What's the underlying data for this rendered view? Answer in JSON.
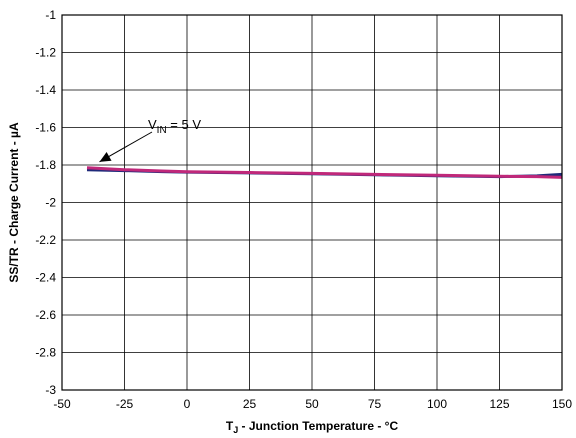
{
  "chart_data": {
    "type": "line",
    "title": "",
    "xlabel": {
      "main": "T",
      "sub": "J",
      "rest": " - Junction Temperature - °C"
    },
    "ylabel": "SS/TR - Charge Current - µA",
    "xlim": [
      -50,
      150
    ],
    "ylim": [
      -3,
      -1
    ],
    "x_ticks": [
      -50,
      -25,
      0,
      25,
      50,
      75,
      100,
      125,
      150
    ],
    "y_ticks": [
      -1,
      -1.2,
      -1.4,
      -1.6,
      -1.8,
      -2,
      -2.2,
      -2.4,
      -2.6,
      -2.8,
      -3
    ],
    "x_tick_labels": [
      "-50",
      "-25",
      "0",
      "25",
      "50",
      "75",
      "100",
      "125",
      "150"
    ],
    "y_tick_labels": [
      "-1",
      "-1.2",
      "-1.4",
      "-1.6",
      "-1.8",
      "-2",
      "-2.2",
      "-2.4",
      "-2.6",
      "-2.8",
      "-3"
    ],
    "grid": true,
    "series": [
      {
        "color": "#1f2a7a",
        "x": [
          -40,
          -25,
          -10,
          0,
          25,
          50,
          75,
          100,
          125,
          140,
          150
        ],
        "y": [
          -1.825,
          -1.83,
          -1.835,
          -1.838,
          -1.842,
          -1.847,
          -1.852,
          -1.857,
          -1.862,
          -1.858,
          -1.85
        ]
      },
      {
        "color": "#c0287a",
        "x": [
          -40,
          -25,
          -10,
          0,
          25,
          50,
          75,
          100,
          125,
          140,
          150
        ],
        "y": [
          -1.815,
          -1.825,
          -1.832,
          -1.836,
          -1.84,
          -1.845,
          -1.85,
          -1.855,
          -1.86,
          -1.862,
          -1.866
        ]
      }
    ],
    "annotations": [
      {
        "main": "V",
        "sub": "IN",
        "rest": " = 5 V",
        "point_x": -35,
        "point_y": -1.815
      }
    ]
  }
}
